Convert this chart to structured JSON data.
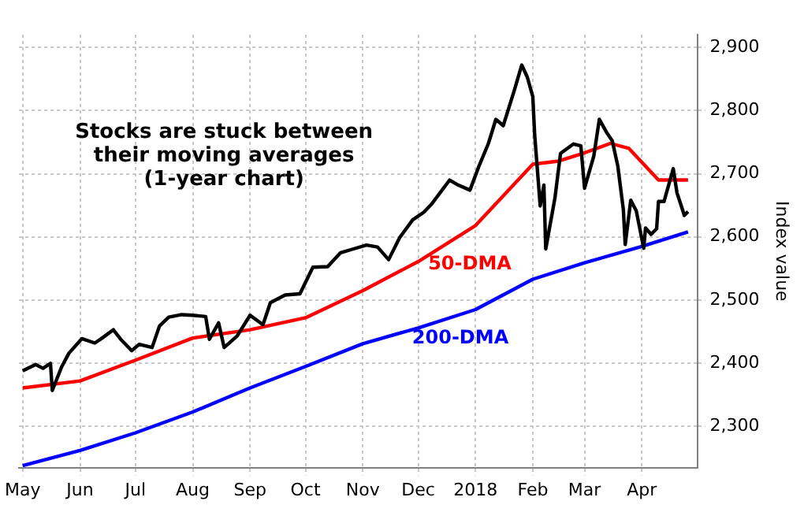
{
  "chart_data": {
    "type": "line",
    "ylabel": "Index value",
    "annotations": [
      "Stocks are stuck between\ntheir moving averages\n(1-year chart)"
    ],
    "xlim": [
      "2017-04-29",
      "2018-05-01"
    ],
    "xticks": [
      {
        "value": "2017-05-01",
        "label": "May"
      },
      {
        "value": "2017-06-01",
        "label": "Jun"
      },
      {
        "value": "2017-07-01",
        "label": "Jul"
      },
      {
        "value": "2017-08-01",
        "label": "Aug"
      },
      {
        "value": "2017-09-01",
        "label": "Sep"
      },
      {
        "value": "2017-10-01",
        "label": "Oct"
      },
      {
        "value": "2017-11-01",
        "label": "Nov"
      },
      {
        "value": "2017-12-01",
        "label": "Dec"
      },
      {
        "value": "2018-01-01",
        "label": "2018"
      },
      {
        "value": "2018-02-01",
        "label": "Feb"
      },
      {
        "value": "2018-03-01",
        "label": "Mar"
      },
      {
        "value": "2018-04-01",
        "label": "Apr"
      }
    ],
    "ylim": [
      2235,
      2920
    ],
    "yticks": [
      {
        "value": 2300,
        "label": "2,300"
      },
      {
        "value": 2400,
        "label": "2,400"
      },
      {
        "value": 2500,
        "label": "2,500"
      },
      {
        "value": 2600,
        "label": "2,600"
      },
      {
        "value": 2700,
        "label": "2,700"
      },
      {
        "value": 2800,
        "label": "2,800"
      },
      {
        "value": 2900,
        "label": "2,900"
      }
    ],
    "grid": true,
    "legend": false,
    "marker": "none",
    "line_style": "solid",
    "series": [
      {
        "color": "#000000",
        "x": [
          "2017-05-01",
          "2017-05-08",
          "2017-05-12",
          "2017-05-16",
          "2017-05-17",
          "2017-05-22",
          "2017-05-26",
          "2017-06-02",
          "2017-06-09",
          "2017-06-13",
          "2017-06-19",
          "2017-06-23",
          "2017-06-29",
          "2017-07-03",
          "2017-07-10",
          "2017-07-14",
          "2017-07-19",
          "2017-07-26",
          "2017-08-01",
          "2017-08-08",
          "2017-08-10",
          "2017-08-15",
          "2017-08-18",
          "2017-08-25",
          "2017-09-01",
          "2017-09-08",
          "2017-09-12",
          "2017-09-20",
          "2017-09-28",
          "2017-10-05",
          "2017-10-13",
          "2017-10-20",
          "2017-10-27",
          "2017-11-03",
          "2017-11-09",
          "2017-11-15",
          "2017-11-21",
          "2017-11-28",
          "2017-12-04",
          "2017-12-08",
          "2017-12-18",
          "2017-12-22",
          "2017-12-29",
          "2018-01-03",
          "2018-01-08",
          "2018-01-12",
          "2018-01-16",
          "2018-01-22",
          "2018-01-26",
          "2018-01-29",
          "2018-02-01",
          "2018-02-02",
          "2018-02-05",
          "2018-02-07",
          "2018-02-08",
          "2018-02-13",
          "2018-02-16",
          "2018-02-23",
          "2018-02-27",
          "2018-03-01",
          "2018-03-06",
          "2018-03-09",
          "2018-03-13",
          "2018-03-16",
          "2018-03-19",
          "2018-03-22",
          "2018-03-23",
          "2018-03-26",
          "2018-03-29",
          "2018-04-02",
          "2018-04-03",
          "2018-04-06",
          "2018-04-09",
          "2018-04-10",
          "2018-04-13",
          "2018-04-18",
          "2018-04-20",
          "2018-04-24",
          "2018-04-26"
        ],
        "values": [
          2388,
          2398,
          2392,
          2400,
          2357,
          2394,
          2416,
          2439,
          2432,
          2440,
          2453,
          2438,
          2420,
          2430,
          2425,
          2459,
          2473,
          2477,
          2476,
          2474,
          2438,
          2464,
          2425,
          2443,
          2476,
          2461,
          2496,
          2508,
          2510,
          2552,
          2553,
          2575,
          2581,
          2587,
          2584,
          2564,
          2599,
          2627,
          2639,
          2651,
          2690,
          2683,
          2674,
          2713,
          2748,
          2786,
          2776,
          2832,
          2872,
          2853,
          2822,
          2762,
          2649,
          2682,
          2581,
          2662,
          2732,
          2747,
          2744,
          2677,
          2728,
          2786,
          2765,
          2752,
          2712,
          2643,
          2588,
          2658,
          2641,
          2582,
          2614,
          2604,
          2613,
          2656,
          2656,
          2708,
          2670,
          2634,
          2640
        ]
      },
      {
        "name": "50-DMA",
        "color": "#ff0000",
        "x": [
          "2017-05-01",
          "2017-06-01",
          "2017-07-01",
          "2017-08-01",
          "2017-09-01",
          "2017-10-01",
          "2017-11-01",
          "2017-12-01",
          "2018-01-01",
          "2018-02-01",
          "2018-02-15",
          "2018-03-01",
          "2018-03-15",
          "2018-03-25",
          "2018-04-10",
          "2018-04-26"
        ],
        "values": [
          2361,
          2372,
          2405,
          2440,
          2453,
          2472,
          2515,
          2561,
          2618,
          2715,
          2720,
          2733,
          2748,
          2740,
          2690,
          2690
        ]
      },
      {
        "name": "200-DMA",
        "color": "#0000ff",
        "x": [
          "2017-05-01",
          "2017-06-01",
          "2017-07-01",
          "2017-08-01",
          "2017-09-01",
          "2017-10-01",
          "2017-11-01",
          "2017-12-01",
          "2018-01-01",
          "2018-02-01",
          "2018-03-01",
          "2018-04-01",
          "2018-04-26"
        ],
        "values": [
          2238,
          2262,
          2290,
          2323,
          2361,
          2395,
          2431,
          2456,
          2485,
          2533,
          2559,
          2585,
          2608
        ]
      }
    ]
  }
}
